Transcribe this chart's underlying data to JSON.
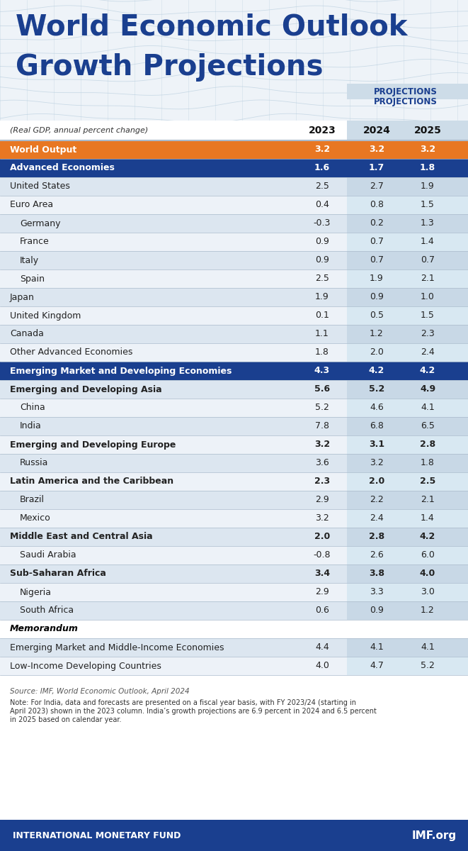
{
  "title_line1": "World Economic Outlook",
  "title_line2": "Growth Projections",
  "subtitle": "(Real GDP, annual percent change)",
  "projections_label": "PROJECTIONS",
  "col_headers": [
    "2023",
    "2024",
    "2025"
  ],
  "rows": [
    {
      "label": "World Output",
      "indent": 0,
      "type": "orange_header",
      "values": [
        "3.2",
        "3.2",
        "3.2"
      ]
    },
    {
      "label": "Advanced Economies",
      "indent": 0,
      "type": "blue_header",
      "values": [
        "1.6",
        "1.7",
        "1.8"
      ]
    },
    {
      "label": "United States",
      "indent": 0,
      "type": "normal",
      "values": [
        "2.5",
        "2.7",
        "1.9"
      ]
    },
    {
      "label": "Euro Area",
      "indent": 0,
      "type": "normal",
      "values": [
        "0.4",
        "0.8",
        "1.5"
      ]
    },
    {
      "label": "Germany",
      "indent": 1,
      "type": "normal",
      "values": [
        "-0.3",
        "0.2",
        "1.3"
      ]
    },
    {
      "label": "France",
      "indent": 1,
      "type": "normal",
      "values": [
        "0.9",
        "0.7",
        "1.4"
      ]
    },
    {
      "label": "Italy",
      "indent": 1,
      "type": "normal",
      "values": [
        "0.9",
        "0.7",
        "0.7"
      ]
    },
    {
      "label": "Spain",
      "indent": 1,
      "type": "normal",
      "values": [
        "2.5",
        "1.9",
        "2.1"
      ]
    },
    {
      "label": "Japan",
      "indent": 0,
      "type": "normal",
      "values": [
        "1.9",
        "0.9",
        "1.0"
      ]
    },
    {
      "label": "United Kingdom",
      "indent": 0,
      "type": "normal",
      "values": [
        "0.1",
        "0.5",
        "1.5"
      ]
    },
    {
      "label": "Canada",
      "indent": 0,
      "type": "normal",
      "values": [
        "1.1",
        "1.2",
        "2.3"
      ]
    },
    {
      "label": "Other Advanced Economies",
      "indent": 0,
      "type": "normal",
      "values": [
        "1.8",
        "2.0",
        "2.4"
      ]
    },
    {
      "label": "Emerging Market and Developing Economies",
      "indent": 0,
      "type": "blue_header",
      "values": [
        "4.3",
        "4.2",
        "4.2"
      ]
    },
    {
      "label": "Emerging and Developing Asia",
      "indent": 0,
      "type": "normal",
      "values": [
        "5.6",
        "5.2",
        "4.9"
      ]
    },
    {
      "label": "China",
      "indent": 1,
      "type": "normal",
      "values": [
        "5.2",
        "4.6",
        "4.1"
      ]
    },
    {
      "label": "India",
      "indent": 1,
      "type": "normal",
      "values": [
        "7.8",
        "6.8",
        "6.5"
      ]
    },
    {
      "label": "Emerging and Developing Europe",
      "indent": 0,
      "type": "normal",
      "values": [
        "3.2",
        "3.1",
        "2.8"
      ]
    },
    {
      "label": "Russia",
      "indent": 1,
      "type": "normal",
      "values": [
        "3.6",
        "3.2",
        "1.8"
      ]
    },
    {
      "label": "Latin America and the Caribbean",
      "indent": 0,
      "type": "normal",
      "values": [
        "2.3",
        "2.0",
        "2.5"
      ]
    },
    {
      "label": "Brazil",
      "indent": 1,
      "type": "normal",
      "values": [
        "2.9",
        "2.2",
        "2.1"
      ]
    },
    {
      "label": "Mexico",
      "indent": 1,
      "type": "normal",
      "values": [
        "3.2",
        "2.4",
        "1.4"
      ]
    },
    {
      "label": "Middle East and Central Asia",
      "indent": 0,
      "type": "normal",
      "values": [
        "2.0",
        "2.8",
        "4.2"
      ]
    },
    {
      "label": "Saudi Arabia",
      "indent": 1,
      "type": "normal",
      "values": [
        "-0.8",
        "2.6",
        "6.0"
      ]
    },
    {
      "label": "Sub-Saharan Africa",
      "indent": 0,
      "type": "normal",
      "values": [
        "3.4",
        "3.8",
        "4.0"
      ]
    },
    {
      "label": "Nigeria",
      "indent": 1,
      "type": "normal",
      "values": [
        "2.9",
        "3.3",
        "3.0"
      ]
    },
    {
      "label": "South Africa",
      "indent": 1,
      "type": "normal",
      "values": [
        "0.6",
        "0.9",
        "1.2"
      ]
    },
    {
      "label": "Memorandum",
      "indent": 0,
      "type": "memo_header",
      "values": [
        "",
        "",
        ""
      ]
    },
    {
      "label": "Emerging Market and Middle-Income Economies",
      "indent": 0,
      "type": "normal",
      "values": [
        "4.4",
        "4.1",
        "4.1"
      ]
    },
    {
      "label": "Low-Income Developing Countries",
      "indent": 0,
      "type": "normal",
      "values": [
        "4.0",
        "4.7",
        "5.2"
      ]
    }
  ],
  "source_text": "Source: IMF, World Economic Outlook, April 2024",
  "note_line1": "Note: For India, data and forecasts are presented on a fiscal year basis, with FY 2023/24 (starting in",
  "note_line2": "April 2023) shown in the 2023 column. India’s growth projections are 6.9 percent in 2024 and 6.5 percent",
  "note_line3": "in 2025 based on calendar year.",
  "footer_left": "INTERNATIONAL MONETARY FUND",
  "footer_right": "IMF.org",
  "bg_color": "#ffffff",
  "title_color": "#1a3f8f",
  "orange_row_bg": "#e87722",
  "orange_row_text": "#ffffff",
  "blue_header_bg": "#1a3f8f",
  "blue_header_text": "#ffffff",
  "normal_row_bg_light": "#dce6f0",
  "normal_row_bg_white": "#edf2f8",
  "proj_col_light": "#c8d8e6",
  "proj_col_white": "#d8e8f2",
  "projections_color": "#1a3f8f",
  "footer_bg": "#1a3f8f",
  "footer_text": "#ffffff",
  "normal_text_color": "#222222",
  "memo_text_color": "#000000",
  "bold_rows": [
    "Emerging and Developing Asia",
    "Emerging and Developing Europe",
    "Latin America and the Caribbean",
    "Middle East and Central Asia",
    "Sub-Saharan Africa"
  ]
}
